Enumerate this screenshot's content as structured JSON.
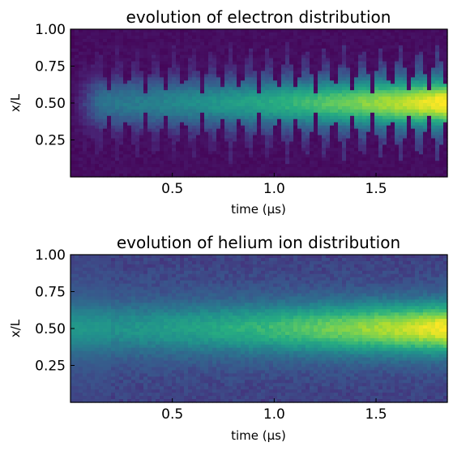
{
  "chart_data": [
    {
      "type": "heatmap",
      "title": "evolution of electron distribution",
      "xlabel": "time (μs)",
      "ylabel": "x/L",
      "xlim": [
        0,
        1.85
      ],
      "ylim": [
        0,
        1.0
      ],
      "xticks": [
        0.5,
        1.0,
        1.5
      ],
      "xtick_labels": [
        "0.5",
        "1.0",
        "1.5"
      ],
      "yticks": [
        0.25,
        0.5,
        0.75,
        1.0
      ],
      "ytick_labels": [
        "0.25",
        "0.50",
        "0.75",
        "1.00"
      ],
      "colormap": "viridis",
      "pattern": {
        "description_values": {
          "center_x_over_L": 0.5,
          "sheath_oscillation_count": 20,
          "peak_time": 1.75,
          "peak_density_relative": 1.0,
          "early_density_relative": 0.35
        }
      }
    },
    {
      "type": "heatmap",
      "title": "evolution of helium ion distribution",
      "xlabel": "time (μs)",
      "ylabel": "x/L",
      "xlim": [
        0,
        1.85
      ],
      "ylim": [
        0,
        1.0
      ],
      "xticks": [
        0.5,
        1.0,
        1.5
      ],
      "xtick_labels": [
        "0.5",
        "1.0",
        "1.5"
      ],
      "yticks": [
        0.25,
        0.5,
        0.75,
        1.0
      ],
      "ytick_labels": [
        "0.25",
        "0.50",
        "0.75",
        "1.00"
      ],
      "colormap": "viridis",
      "pattern": {
        "description_values": {
          "center_x_over_L": 0.5,
          "peak_time": 1.75,
          "peak_density_relative": 1.0,
          "early_density_relative": 0.3
        }
      }
    }
  ],
  "colors": {
    "viridis_low": "#440154",
    "viridis_mid": "#21918c",
    "viridis_high": "#fde725"
  }
}
